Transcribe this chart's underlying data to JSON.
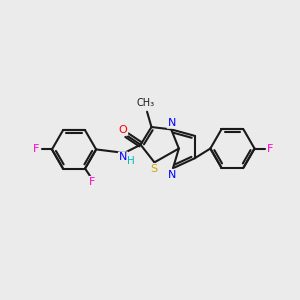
{
  "background_color": "#ebebeb",
  "bond_color": "#1a1a1a",
  "atom_colors": {
    "N": "#0000ff",
    "O": "#ff0000",
    "S": "#ccaa00",
    "F": "#ff00cc",
    "F_right": "#ff00cc",
    "H": "#00bbbb",
    "C": "#1a1a1a"
  },
  "lw": 1.5,
  "figsize": [
    3.0,
    3.0
  ],
  "dpi": 100
}
